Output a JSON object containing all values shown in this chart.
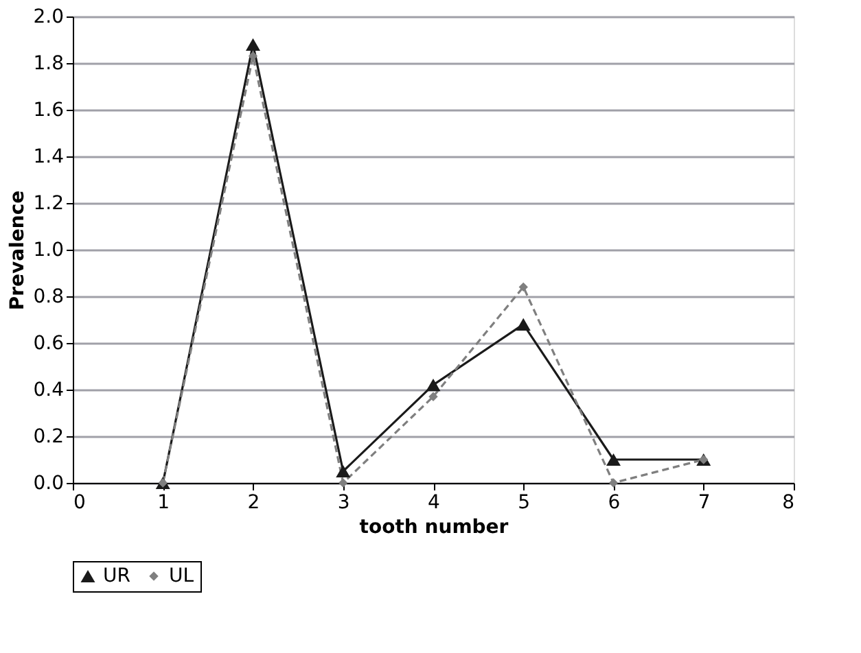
{
  "chart_data": {
    "type": "line",
    "xlabel": "tooth number",
    "ylabel": "Prevalence",
    "x": [
      1,
      2,
      3,
      4,
      5,
      6,
      7
    ],
    "series": [
      {
        "name": "UR",
        "color": "#1a1a1a",
        "values": [
          0,
          1.88,
          0.05,
          0.42,
          0.68,
          0.1,
          0.1
        ],
        "marker": "triangle",
        "line_style": "solid"
      },
      {
        "name": "UL",
        "color": "#7f7f7f",
        "values": [
          0,
          1.83,
          0,
          0.37,
          0.84,
          0,
          0.1
        ],
        "marker": "diamond",
        "line_style": "dashed"
      }
    ],
    "xlim": [
      0,
      8
    ],
    "xticks": [
      0,
      1,
      2,
      3,
      4,
      5,
      6,
      7,
      8
    ],
    "ylim": [
      0,
      2.0
    ],
    "yticks": [
      {
        "value": 0,
        "label": "0.0"
      },
      {
        "value": 0.2,
        "label": "0.2"
      },
      {
        "value": 0.4,
        "label": "0.4"
      },
      {
        "value": 0.6,
        "label": "0.6"
      },
      {
        "value": 0.8,
        "label": "0.8"
      },
      {
        "value": 1.0,
        "label": "1.0"
      },
      {
        "value": 1.2,
        "label": "1.2"
      },
      {
        "value": 1.4,
        "label": "1.4"
      },
      {
        "value": 1.6,
        "label": "1.6"
      },
      {
        "value": 1.8,
        "label": "1.8"
      },
      {
        "value": 2.0,
        "label": "2.0"
      }
    ],
    "grid": "y",
    "legend": "bottom"
  }
}
